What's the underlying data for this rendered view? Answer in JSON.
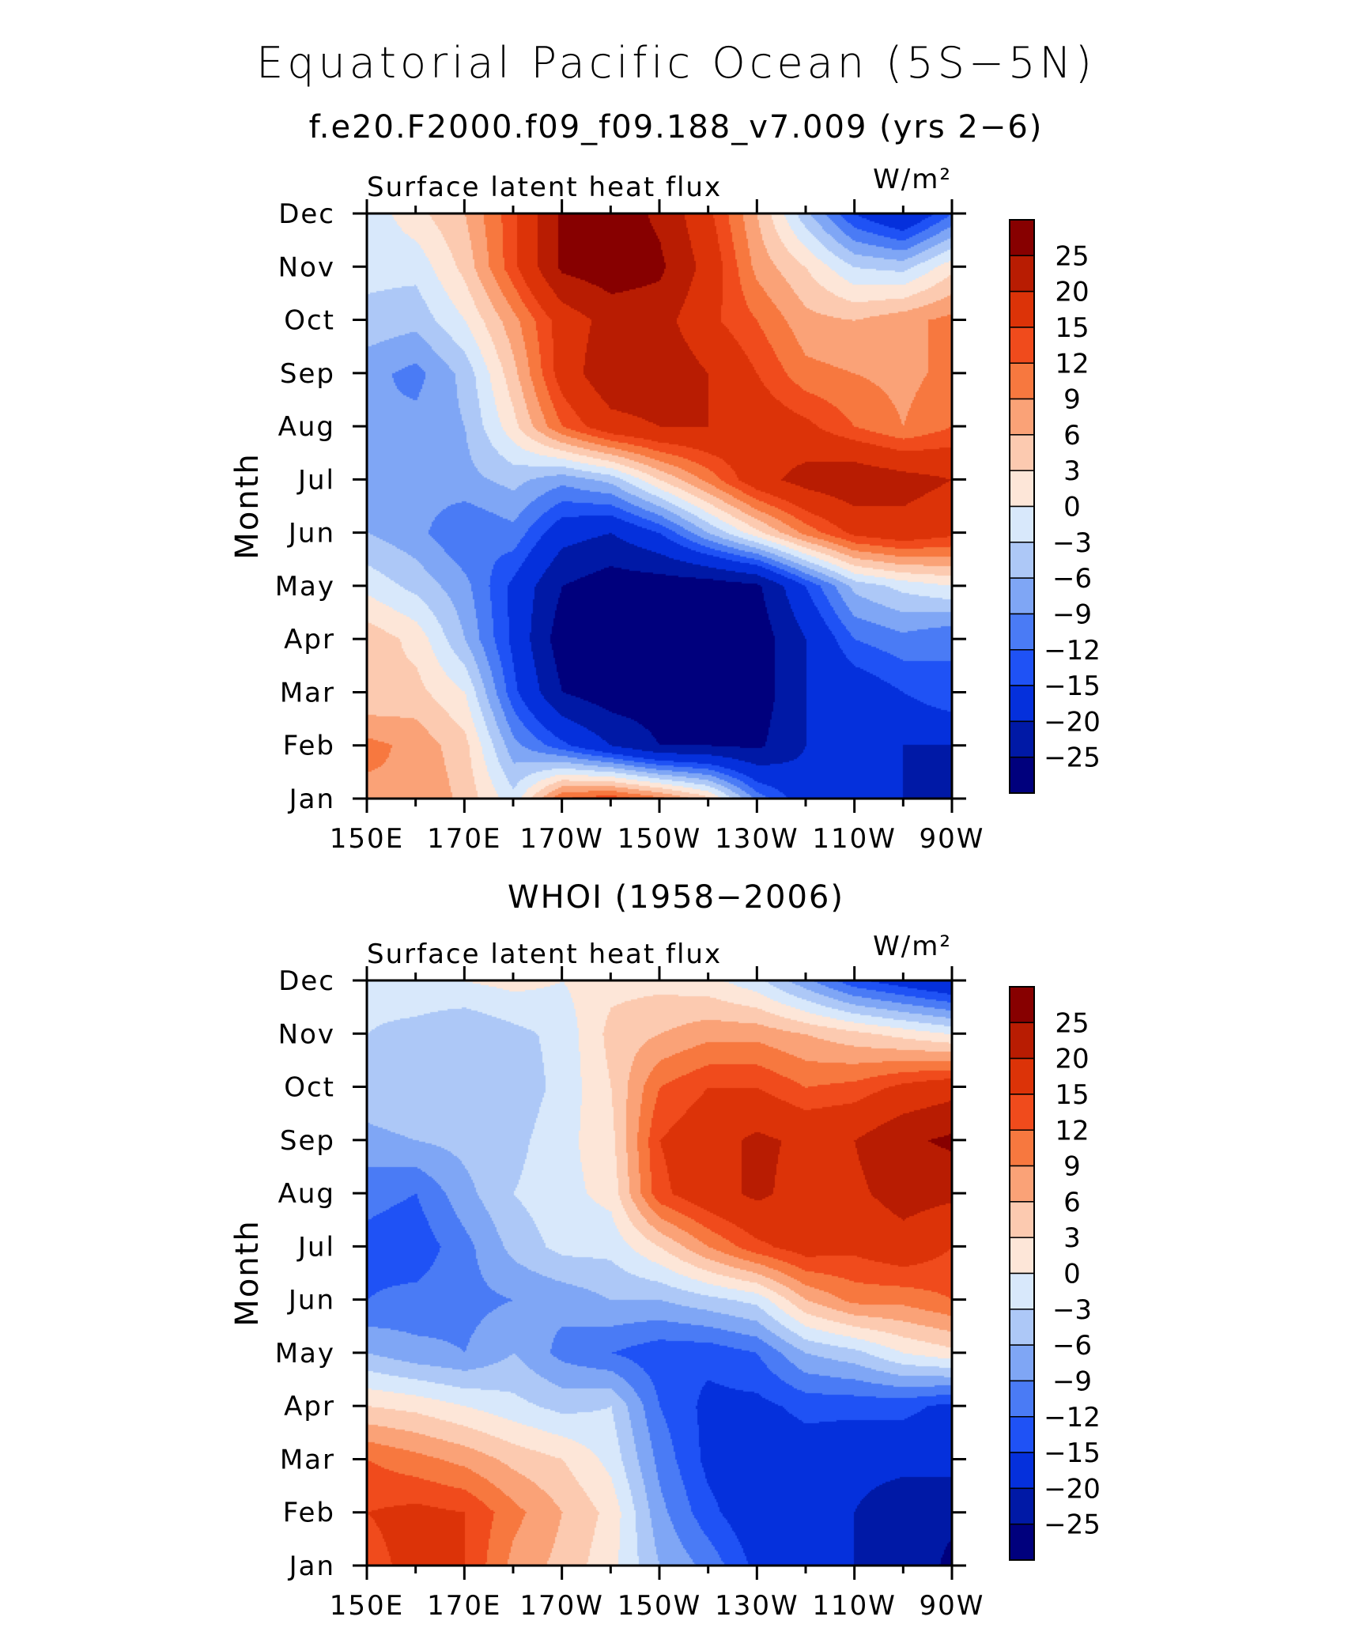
{
  "figure": {
    "title": "Equatorial Pacific Ocean (5S−5N)",
    "subtitle": "f.e20.F2000.f09_f09.188_v7.009 (yrs 2−6)",
    "second_subtitle": "WHOI (1958−2006)"
  },
  "colorbar": {
    "labels": [
      "25",
      "20",
      "15",
      "12",
      "9",
      "6",
      "3",
      "0",
      "−3",
      "−6",
      "−9",
      "−12",
      "−15",
      "−20",
      "−25"
    ],
    "levels": [
      -25,
      -20,
      -15,
      -12,
      -9,
      -6,
      -3,
      0,
      3,
      6,
      9,
      12,
      15,
      20,
      25
    ],
    "colors": [
      "#00007d",
      "#0019a6",
      "#0530dc",
      "#1f52f5",
      "#4a7bf5",
      "#7fa6f5",
      "#adc8f7",
      "#d8e8fb",
      "#fde6d8",
      "#fccab0",
      "#faa277",
      "#f7783f",
      "#f04b1c",
      "#dc3308",
      "#b81c02",
      "#870000"
    ]
  },
  "chart_data": [
    {
      "type": "heatmap",
      "title": "Surface latent heat flux",
      "units": "W/m²",
      "ylabel": "Month",
      "xlabel": "",
      "x_ticks": [
        "150E",
        "170E",
        "170W",
        "150W",
        "130W",
        "110W",
        "90W"
      ],
      "y_ticks": [
        "Jan",
        "Feb",
        "Mar",
        "Apr",
        "May",
        "Jun",
        "Jul",
        "Aug",
        "Sep",
        "Oct",
        "Nov",
        "Dec"
      ],
      "x": [
        150,
        160,
        170,
        180,
        190,
        200,
        210,
        220,
        230,
        240,
        250,
        260,
        270
      ],
      "y": [
        "Jan",
        "Feb",
        "Mar",
        "Apr",
        "May",
        "Jun",
        "Jul",
        "Aug",
        "Sep",
        "Oct",
        "Nov",
        "Dec"
      ],
      "z": [
        [
          8,
          9,
          5,
          -2,
          12,
          14,
          10,
          4,
          -10,
          -18,
          -18,
          -20,
          -25
        ],
        [
          10,
          8,
          4,
          -8,
          -14,
          -20,
          -25,
          -25,
          -26,
          -20,
          -18,
          -20,
          -20
        ],
        [
          3,
          4,
          0,
          -14,
          -25,
          -28,
          -28,
          -28,
          -28,
          -20,
          -18,
          -15,
          -12
        ],
        [
          5,
          2,
          -6,
          -16,
          -28,
          -30,
          -30,
          -30,
          -28,
          -20,
          -12,
          -10,
          -12
        ],
        [
          -1,
          -4,
          -8,
          -16,
          -25,
          -28,
          -28,
          -28,
          -26,
          -15,
          -5,
          -2,
          0
        ],
        [
          -6,
          -8,
          -12,
          -10,
          -18,
          -20,
          -15,
          -6,
          2,
          10,
          16,
          18,
          16
        ],
        [
          -7,
          -8,
          -7,
          -5,
          -8,
          -5,
          3,
          10,
          18,
          22,
          24,
          22,
          20
        ],
        [
          -9,
          -8,
          -6,
          2,
          12,
          18,
          20,
          20,
          18,
          16,
          12,
          9,
          12
        ],
        [
          -8,
          -10,
          -5,
          5,
          17,
          24,
          24,
          20,
          15,
          10,
          9,
          8,
          10
        ],
        [
          -4,
          -5,
          0,
          8,
          17,
          22,
          22,
          16,
          12,
          7,
          6,
          8,
          10
        ],
        [
          -2,
          -2,
          4,
          14,
          26,
          28,
          26,
          18,
          8,
          3,
          -3,
          -4,
          2
        ],
        [
          -2,
          2,
          6,
          14,
          26,
          28,
          24,
          16,
          6,
          -5,
          -15,
          -20,
          -12
        ]
      ]
    },
    {
      "type": "heatmap",
      "title": "Surface latent heat flux",
      "units": "W/m²",
      "ylabel": "Month",
      "xlabel": "",
      "x_ticks": [
        "150E",
        "170E",
        "170W",
        "150W",
        "130W",
        "110W",
        "90W"
      ],
      "y_ticks": [
        "Jan",
        "Feb",
        "Mar",
        "Apr",
        "May",
        "Jun",
        "Jul",
        "Aug",
        "Sep",
        "Oct",
        "Nov",
        "Dec"
      ],
      "x": [
        150,
        160,
        170,
        180,
        190,
        200,
        210,
        220,
        230,
        240,
        250,
        260,
        270
      ],
      "y": [
        "Jan",
        "Feb",
        "Mar",
        "Apr",
        "May",
        "Jun",
        "Jul",
        "Aug",
        "Sep",
        "Oct",
        "Nov",
        "Dec"
      ],
      "z": [
        [
          14,
          16,
          15,
          8,
          5,
          1,
          -6,
          -10,
          -16,
          -18,
          -20,
          -22,
          -26
        ],
        [
          15,
          16,
          15,
          10,
          6,
          2,
          -8,
          -14,
          -18,
          -18,
          -20,
          -24,
          -24
        ],
        [
          12,
          10,
          8,
          5,
          3,
          -1,
          -10,
          -16,
          -18,
          -17,
          -18,
          -18,
          -18
        ],
        [
          3,
          2,
          0,
          -2,
          -4,
          -3,
          -12,
          -16,
          -16,
          -14,
          -14,
          -14,
          -16
        ],
        [
          -6,
          -8,
          -9,
          -6,
          -10,
          -12,
          -14,
          -14,
          -12,
          -6,
          -4,
          0,
          2
        ],
        [
          -12,
          -11,
          -10,
          -9,
          -8,
          -6,
          -6,
          -4,
          -2,
          6,
          10,
          10,
          12
        ],
        [
          -13,
          -14,
          -10,
          -5,
          -2,
          -2,
          3,
          9,
          14,
          17,
          16,
          18,
          15
        ],
        [
          -11,
          -12,
          -7,
          -3,
          -1,
          1,
          14,
          18,
          21,
          18,
          19,
          22,
          21
        ],
        [
          -7,
          -6,
          -5,
          -4,
          -1,
          2,
          15,
          18,
          21,
          19,
          20,
          24,
          26
        ],
        [
          -4,
          -3,
          -5,
          -5,
          -2,
          3,
          12,
          15,
          15,
          12,
          13,
          16,
          18
        ],
        [
          -3,
          -4,
          -6,
          -4,
          -2,
          4,
          6,
          8,
          8,
          6,
          4,
          2,
          0
        ],
        [
          -2,
          -1,
          0,
          1,
          0,
          2,
          2,
          1,
          -2,
          -8,
          -14,
          -17,
          -20
        ]
      ]
    }
  ]
}
